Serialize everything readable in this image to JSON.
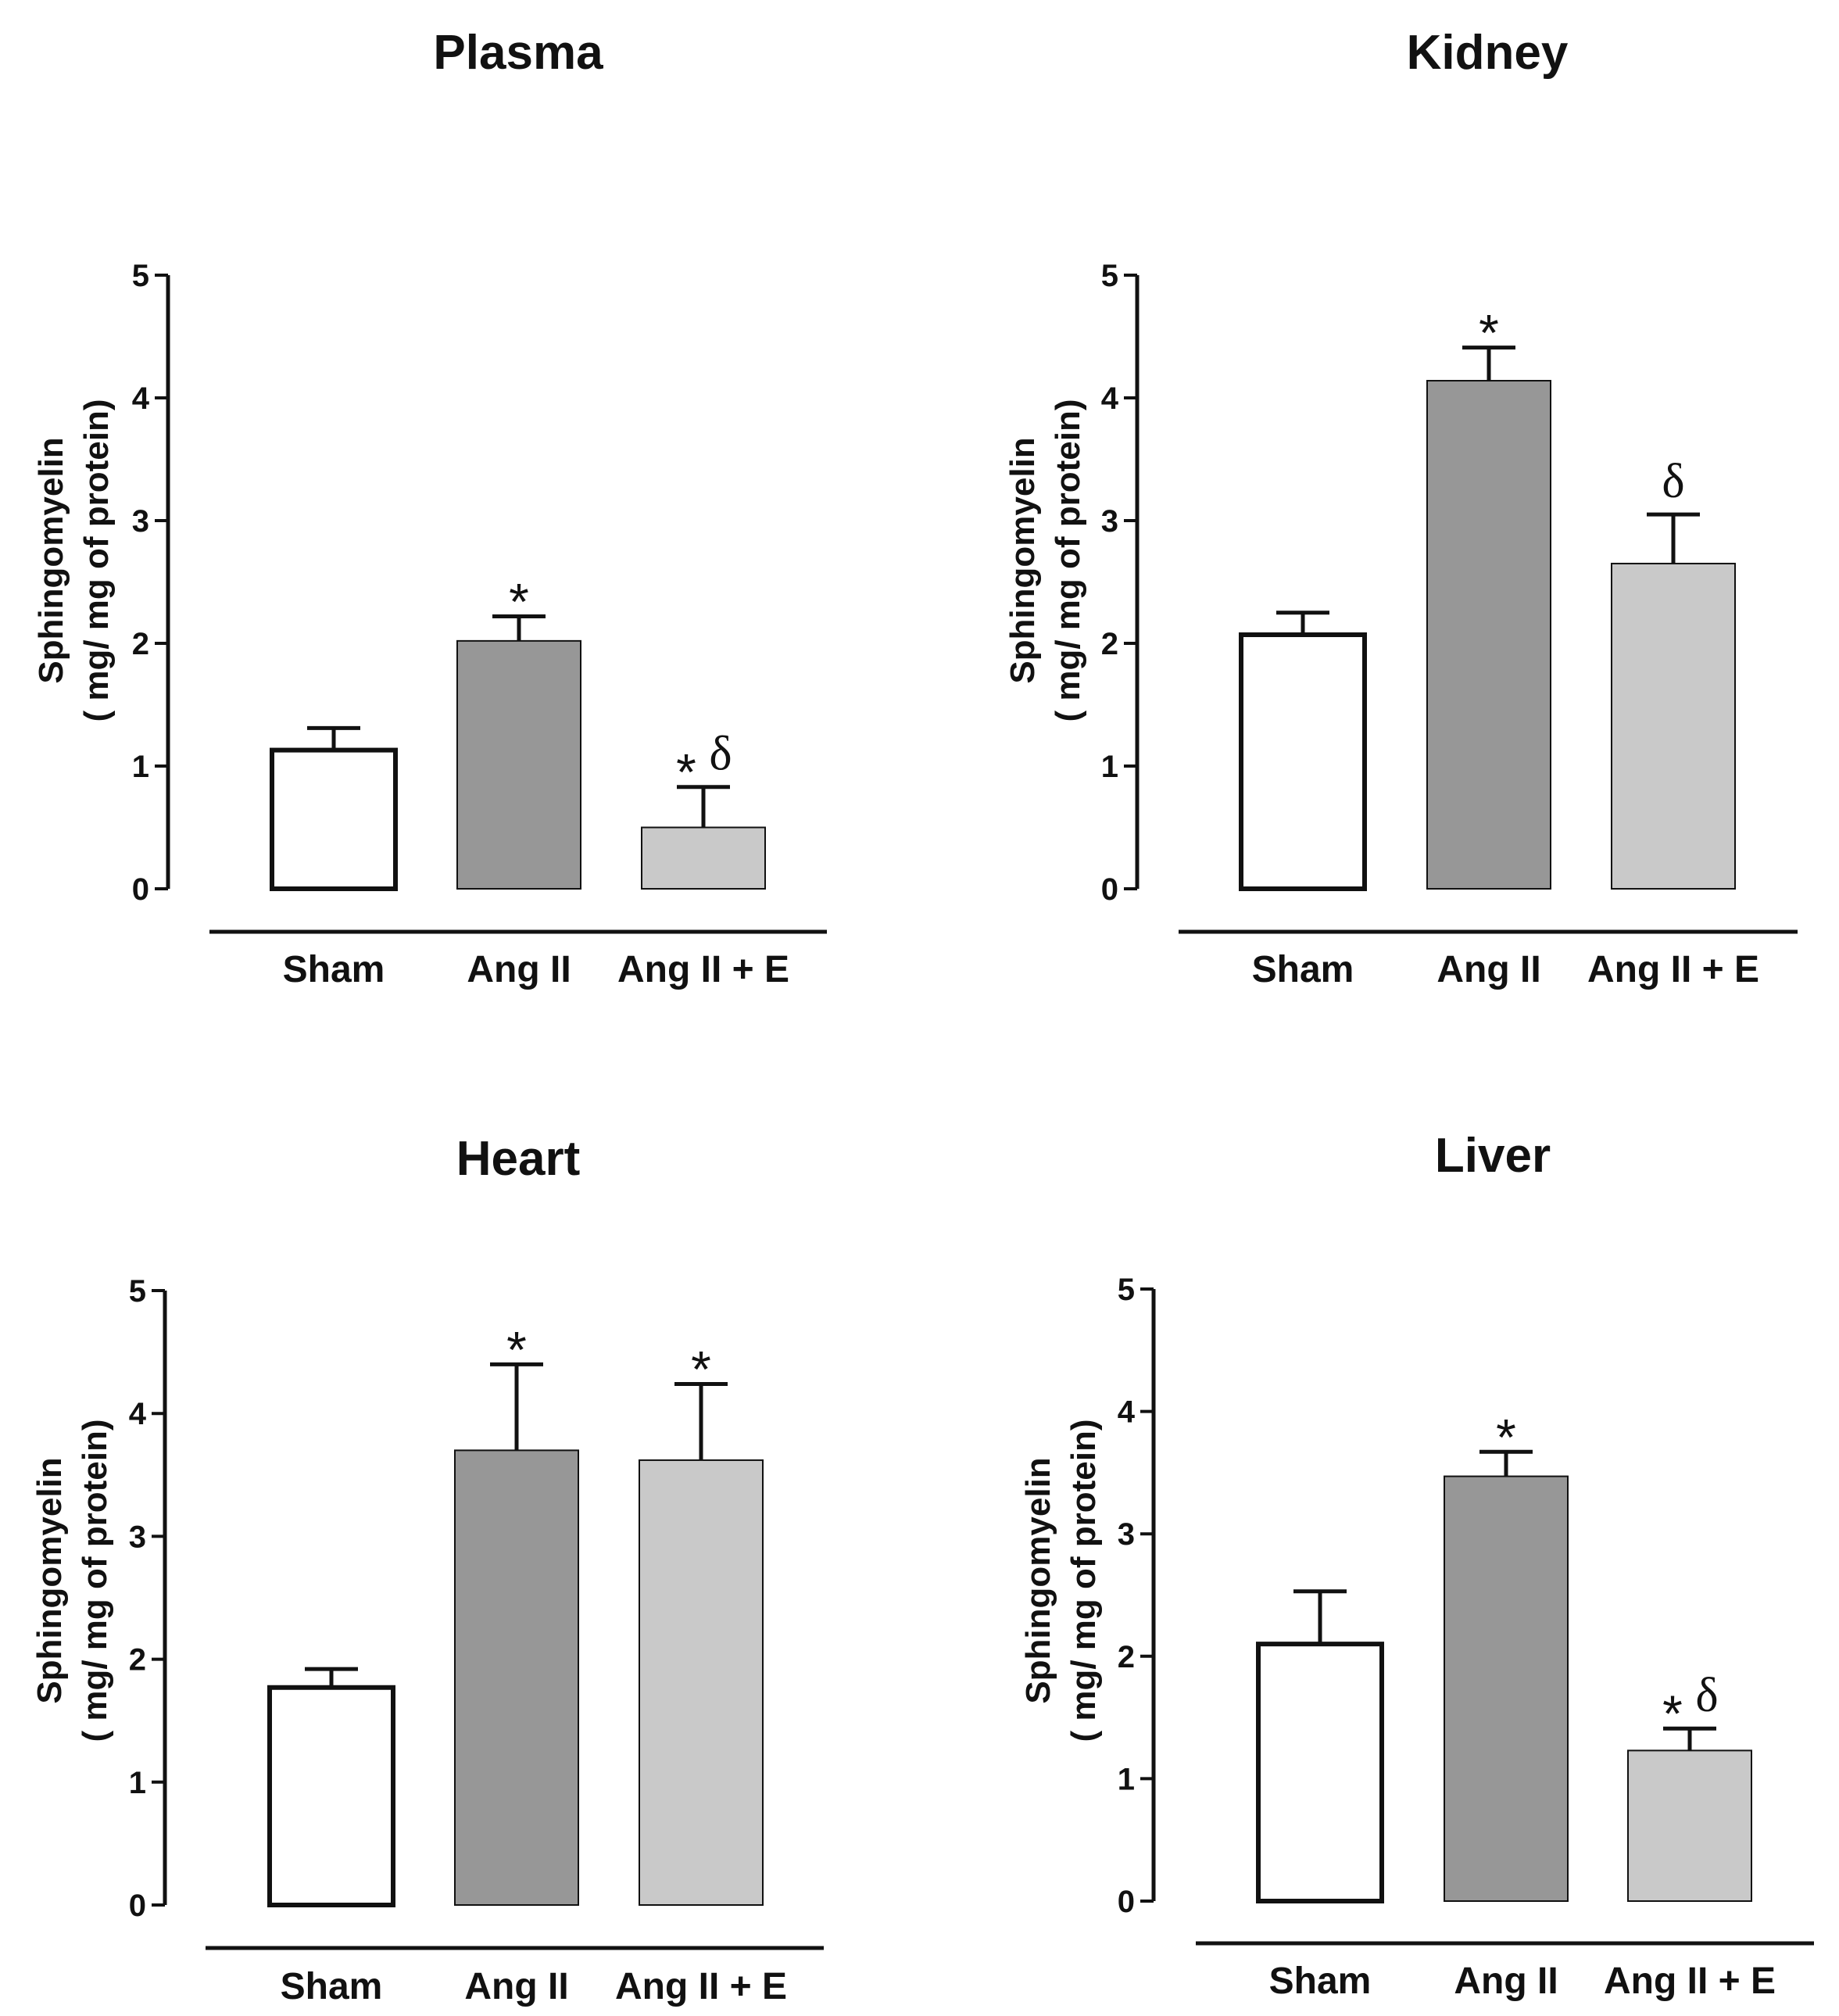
{
  "colors": {
    "sham": "#ffffff",
    "ang_ii": "#979797",
    "ang_ii_e": "#c9c9c9",
    "ink": "#111111"
  },
  "chart_data": [
    {
      "type": "bar",
      "title": "Plasma",
      "ylabel_line1": "Sphingomyelin",
      "ylabel_line2": "( mg/ mg of protein)",
      "xlabel": "",
      "ylim": [
        0,
        5
      ],
      "yticks": [
        "0",
        "1",
        "2",
        "3",
        "4",
        "5"
      ],
      "categories": [
        "Sham",
        "Ang II",
        "Ang II + E"
      ],
      "values": [
        1.13,
        2.02,
        0.5
      ],
      "errors": [
        0.18,
        0.2,
        0.33
      ],
      "annotations": [
        [],
        [
          {
            "text": "*",
            "kind": "star"
          }
        ],
        [
          {
            "text": "*",
            "kind": "star"
          },
          {
            "text": "δ",
            "kind": "delta"
          }
        ]
      ]
    },
    {
      "type": "bar",
      "title": "Kidney",
      "ylabel_line1": "Sphingomyelin",
      "ylabel_line2": "( mg/ mg of protein)",
      "xlabel": "",
      "ylim": [
        0,
        5
      ],
      "yticks": [
        "0",
        "1",
        "2",
        "3",
        "4",
        "5"
      ],
      "categories": [
        "Sham",
        "Ang II",
        "Ang II + E"
      ],
      "values": [
        2.07,
        4.14,
        2.65
      ],
      "errors": [
        0.18,
        0.27,
        0.4
      ],
      "annotations": [
        [],
        [
          {
            "text": "*",
            "kind": "star"
          }
        ],
        [
          {
            "text": "δ",
            "kind": "delta"
          }
        ]
      ]
    },
    {
      "type": "bar",
      "title": "Heart",
      "ylabel_line1": "Sphingomyelin",
      "ylabel_line2": "( mg/ mg of protein)",
      "xlabel": "",
      "ylim": [
        0,
        5
      ],
      "yticks": [
        "0",
        "1",
        "2",
        "3",
        "4",
        "5"
      ],
      "categories": [
        "Sham",
        "Ang II",
        "Ang II + E"
      ],
      "values": [
        1.77,
        3.7,
        3.62
      ],
      "errors": [
        0.15,
        0.7,
        0.62
      ],
      "annotations": [
        [],
        [
          {
            "text": "*",
            "kind": "star"
          }
        ],
        [
          {
            "text": "*",
            "kind": "star"
          }
        ]
      ]
    },
    {
      "type": "bar",
      "title": "Liver",
      "ylabel_line1": "Sphingomyelin",
      "ylabel_line2": "( mg/ mg of protein)",
      "xlabel": "",
      "ylim": [
        0,
        5
      ],
      "yticks": [
        "0",
        "1",
        "2",
        "3",
        "4",
        "5"
      ],
      "categories": [
        "Sham",
        "Ang II",
        "Ang II + E"
      ],
      "values": [
        2.1,
        3.47,
        1.23
      ],
      "errors": [
        0.43,
        0.2,
        0.18
      ],
      "annotations": [
        [],
        [
          {
            "text": "*",
            "kind": "star"
          }
        ],
        [
          {
            "text": "*",
            "kind": "star"
          },
          {
            "text": "δ",
            "kind": "delta"
          }
        ]
      ]
    }
  ]
}
